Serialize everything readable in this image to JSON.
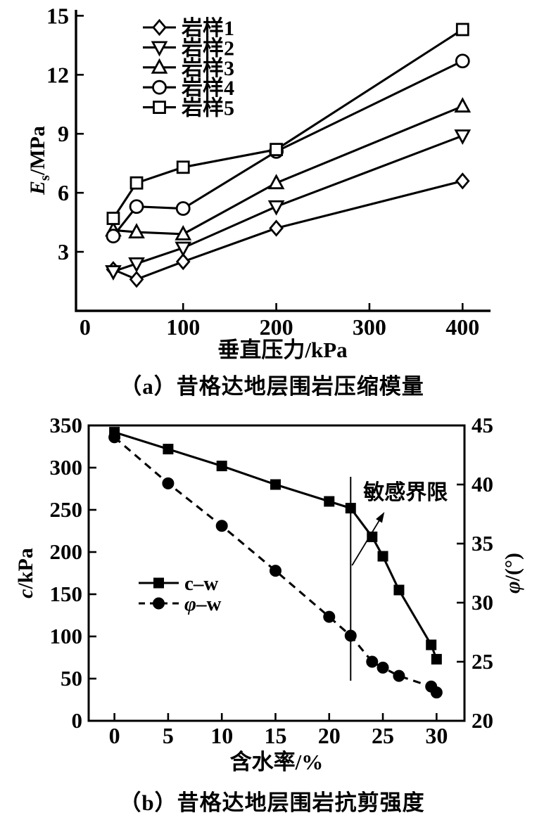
{
  "page": {
    "bg": "#ffffff",
    "ink": "#000000"
  },
  "chart_data": [
    {
      "id": "a",
      "type": "line",
      "caption": "（a）昔格达地层围岩压缩模量",
      "xlabel": "垂直压力/kPa",
      "ylabel_parts": [
        {
          "t": "E",
          "s": "i"
        },
        {
          "t": "s",
          "s": "sub"
        },
        {
          "t": "/MPa",
          "s": ""
        }
      ],
      "x": [
        25,
        50,
        100,
        200,
        400
      ],
      "xticks": [
        0,
        100,
        200,
        300,
        400
      ],
      "yticks": [
        3,
        6,
        9,
        12,
        15
      ],
      "xlim": [
        -15,
        430
      ],
      "ylim": [
        0,
        15.3
      ],
      "grid": false,
      "legend_position": "top-left-inside",
      "series": [
        {
          "name": "岩样1",
          "marker": "diamond",
          "marker_fill": "open",
          "line": "solid",
          "values": [
            2.1,
            1.6,
            2.5,
            4.2,
            6.6
          ]
        },
        {
          "name": "岩样2",
          "marker": "triangle-down",
          "marker_fill": "open",
          "line": "solid",
          "values": [
            2.0,
            2.4,
            3.2,
            5.3,
            8.9
          ]
        },
        {
          "name": "岩样3",
          "marker": "triangle-up",
          "marker_fill": "open",
          "line": "solid",
          "values": [
            4.1,
            4.0,
            3.9,
            6.5,
            10.4
          ]
        },
        {
          "name": "岩样4",
          "marker": "circle",
          "marker_fill": "open",
          "line": "solid",
          "values": [
            3.8,
            5.3,
            5.2,
            8.1,
            12.7
          ]
        },
        {
          "name": "岩样5",
          "marker": "square",
          "marker_fill": "open",
          "line": "solid",
          "values": [
            4.7,
            6.5,
            7.3,
            8.2,
            14.3
          ]
        }
      ]
    },
    {
      "id": "b",
      "type": "line",
      "dual_axis": true,
      "caption": "（b）昔格达地层围岩抗剪强度",
      "xlabel": "含水率/%",
      "ylabel_left_parts": [
        {
          "t": "c",
          "s": "i"
        },
        {
          "t": "/kPa",
          "s": ""
        }
      ],
      "ylabel_right_parts": [
        {
          "t": "φ",
          "s": "i"
        },
        {
          "t": "/(°)",
          "s": ""
        }
      ],
      "x": [
        0,
        5,
        10,
        15,
        20,
        22,
        24,
        25,
        26.5,
        29.5,
        30
      ],
      "xticks": [
        0,
        5,
        10,
        15,
        20,
        25,
        30
      ],
      "yticks_left": [
        0,
        50,
        100,
        150,
        200,
        250,
        300,
        350
      ],
      "yticks_right": [
        20,
        25,
        30,
        35,
        40,
        45
      ],
      "xlim": [
        -2.4,
        32.6
      ],
      "ylim_left": [
        0,
        350
      ],
      "ylim_right": [
        20,
        45
      ],
      "grid": false,
      "legend_position": "center-left-inside",
      "series": [
        {
          "name": "c–w",
          "name_parts": [
            {
              "t": "c–w",
              "s": ""
            }
          ],
          "axis": "left",
          "marker": "square",
          "marker_fill": "filled",
          "line": "solid",
          "values": [
            342,
            322,
            302,
            280,
            260,
            252,
            218,
            195,
            155,
            90,
            73
          ]
        },
        {
          "name": "φ–w",
          "name_parts": [
            {
              "t": "φ",
              "s": "i"
            },
            {
              "t": "–w",
              "s": ""
            }
          ],
          "axis": "right",
          "marker": "circle",
          "marker_fill": "filled",
          "line": "dashed",
          "values": [
            44,
            40.1,
            36.5,
            32.7,
            28.8,
            27.2,
            25.0,
            24.5,
            23.8,
            22.9,
            22.4
          ]
        }
      ],
      "annotation": {
        "text": "敏感界限",
        "boundary_x": 22
      }
    }
  ]
}
